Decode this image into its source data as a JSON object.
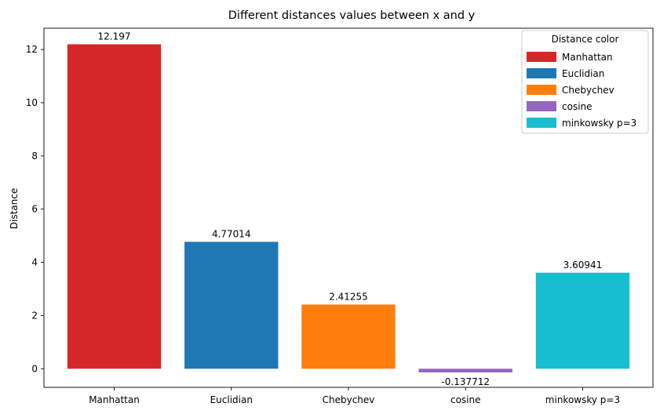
{
  "chart_data": {
    "type": "bar",
    "title": "Different distances values between x and y",
    "xlabel": "",
    "ylabel": "Distance",
    "categories": [
      "Manhattan",
      "Euclidian",
      "Chebychev",
      "cosine",
      "minkowsky p=3"
    ],
    "values": [
      12.197,
      4.77014,
      2.41255,
      -0.137712,
      3.60941
    ],
    "value_labels": [
      "12.197",
      "4.77014",
      "2.41255",
      "-0.137712",
      "3.60941"
    ],
    "colors": [
      "#d62728",
      "#1f77b4",
      "#ff7f0e",
      "#9467bd",
      "#17becf"
    ],
    "ylim": [
      -0.7,
      12.8
    ],
    "yticks": [
      0,
      2,
      4,
      6,
      8,
      10,
      12
    ],
    "ytick_labels": [
      "0",
      "2",
      "4",
      "6",
      "8",
      "10",
      "12"
    ],
    "grid": false,
    "legend": {
      "title": "Distance color",
      "placement": "top-right",
      "entries": [
        "Manhattan",
        "Euclidian",
        "Chebychev",
        "cosine",
        "minkowsky p=3"
      ]
    }
  }
}
